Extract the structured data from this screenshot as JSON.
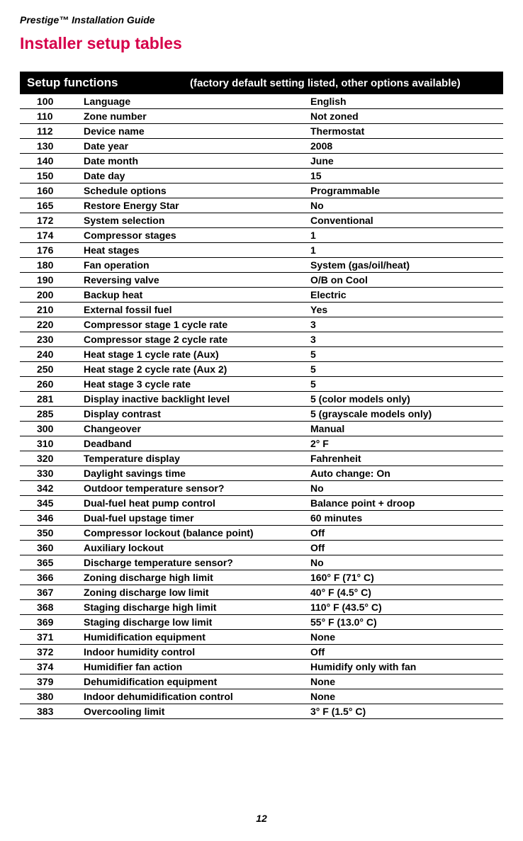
{
  "header": "Prestige™ Installation Guide",
  "title": "Installer setup tables",
  "tableHeader": {
    "left": "Setup functions",
    "right": "(factory default setting listed, other options available)"
  },
  "rows": [
    {
      "code": "100",
      "label": "Language",
      "value": "English"
    },
    {
      "code": "110",
      "label": "Zone number",
      "value": "Not zoned"
    },
    {
      "code": "112",
      "label": "Device name",
      "value": "Thermostat"
    },
    {
      "code": "130",
      "label": "Date year",
      "value": "2008"
    },
    {
      "code": "140",
      "label": "Date month",
      "value": "June"
    },
    {
      "code": "150",
      "label": "Date day",
      "value": "15"
    },
    {
      "code": "160",
      "label": "Schedule options",
      "value": "Programmable"
    },
    {
      "code": "165",
      "label": "Restore Energy Star",
      "value": "No"
    },
    {
      "code": "172",
      "label": "System selection",
      "value": "Conventional"
    },
    {
      "code": "174",
      "label": "Compressor stages",
      "value": "1"
    },
    {
      "code": "176",
      "label": "Heat stages",
      "value": "1"
    },
    {
      "code": "180",
      "label": "Fan operation",
      "value": "System (gas/oil/heat)"
    },
    {
      "code": "190",
      "label": "Reversing valve",
      "value": "O/B on Cool"
    },
    {
      "code": "200",
      "label": "Backup heat",
      "value": "Electric"
    },
    {
      "code": "210",
      "label": "External fossil fuel",
      "value": "Yes"
    },
    {
      "code": "220",
      "label": "Compressor stage 1 cycle rate",
      "value": "3"
    },
    {
      "code": "230",
      "label": "Compressor stage 2 cycle rate",
      "value": "3"
    },
    {
      "code": "240",
      "label": "Heat stage 1 cycle rate (Aux)",
      "value": "5"
    },
    {
      "code": "250",
      "label": "Heat stage 2 cycle rate (Aux 2)",
      "value": "5"
    },
    {
      "code": "260",
      "label": "Heat stage 3 cycle rate",
      "value": "5"
    },
    {
      "code": "281",
      "label": "Display inactive backlight level",
      "value": "5 (color models only)"
    },
    {
      "code": "285",
      "label": "Display contrast",
      "value": "5 (grayscale models only)"
    },
    {
      "code": "300",
      "label": "Changeover",
      "value": "Manual"
    },
    {
      "code": "310",
      "label": "Deadband",
      "value": "2° F"
    },
    {
      "code": "320",
      "label": "Temperature display",
      "value": "Fahrenheit"
    },
    {
      "code": "330",
      "label": "Daylight savings time",
      "value": "Auto change: On"
    },
    {
      "code": "342",
      "label": "Outdoor temperature sensor?",
      "value": "No"
    },
    {
      "code": "345",
      "label": "Dual-fuel heat pump control",
      "value": "Balance point + droop"
    },
    {
      "code": "346",
      "label": "Dual-fuel upstage timer",
      "value": "60 minutes"
    },
    {
      "code": "350",
      "label": "Compressor lockout (balance point)",
      "value": "Off"
    },
    {
      "code": "360",
      "label": "Auxiliary lockout",
      "value": "Off"
    },
    {
      "code": "365",
      "label": "Discharge temperature sensor?",
      "value": "No"
    },
    {
      "code": "366",
      "label": "Zoning discharge high limit",
      "value": "160° F (71° C)"
    },
    {
      "code": "367",
      "label": "Zoning discharge low limit",
      "value": "40° F (4.5° C)"
    },
    {
      "code": "368",
      "label": "Staging discharge high limit",
      "value": "110° F (43.5° C)"
    },
    {
      "code": "369",
      "label": "Staging discharge low limit",
      "value": "55° F (13.0° C)"
    },
    {
      "code": "371",
      "label": "Humidification equipment",
      "value": "None"
    },
    {
      "code": "372",
      "label": "Indoor humidity control",
      "value": "Off"
    },
    {
      "code": "374",
      "label": "Humidifier fan action",
      "value": "Humidify only with fan"
    },
    {
      "code": "379",
      "label": "Dehumidification equipment",
      "value": "None"
    },
    {
      "code": "380",
      "label": "Indoor dehumidification control",
      "value": "None"
    },
    {
      "code": "383",
      "label": "Overcooling limit",
      "value": "3° F (1.5° C)"
    }
  ],
  "pageNumber": "12"
}
